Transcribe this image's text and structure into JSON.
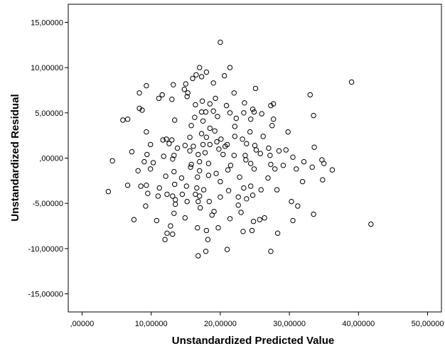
{
  "chart_data": {
    "type": "scatter",
    "title": "",
    "xlabel": "Unstandardized Predicted Value",
    "ylabel": "Unstandardized Residual",
    "xlim": [
      -2,
      52
    ],
    "ylim": [
      -17,
      17
    ],
    "x_ticks": [
      0,
      10,
      20,
      30,
      40,
      50
    ],
    "y_ticks": [
      -15,
      -10,
      -5,
      0,
      5,
      10,
      15
    ],
    "x_tick_labels": [
      ",00000",
      "10,00000",
      "20,00000",
      "30,00000",
      "40,00000",
      "50,00000"
    ],
    "y_tick_labels": [
      "-15,00000",
      "-10,00000",
      "-5,00000",
      ",00000",
      "5,00000",
      "10,00000",
      "15,00000"
    ],
    "grid": false,
    "marker": "open-circle",
    "colors": {
      "plot_background": "#ffffff",
      "marker_stroke": "#000000",
      "frame": "#000000"
    },
    "points": [
      [
        20.0,
        12.8
      ],
      [
        17.0,
        10.0
      ],
      [
        21.4,
        10.0
      ],
      [
        18.0,
        9.5
      ],
      [
        16.5,
        9.2
      ],
      [
        17.3,
        9.0
      ],
      [
        20.6,
        9.1
      ],
      [
        16.0,
        8.8
      ],
      [
        39.0,
        8.4
      ],
      [
        9.3,
        8.0
      ],
      [
        13.2,
        8.1
      ],
      [
        15.0,
        8.2
      ],
      [
        19.0,
        8.3
      ],
      [
        14.8,
        7.6
      ],
      [
        15.3,
        7.2
      ],
      [
        25.1,
        7.7
      ],
      [
        8.3,
        7.2
      ],
      [
        11.6,
        7.0
      ],
      [
        15.2,
        6.8
      ],
      [
        11.1,
        6.6
      ],
      [
        13.0,
        6.5
      ],
      [
        17.4,
        6.3
      ],
      [
        19.3,
        6.6
      ],
      [
        22.0,
        7.2
      ],
      [
        33.0,
        7.0
      ],
      [
        16.4,
        5.9
      ],
      [
        18.5,
        6.0
      ],
      [
        20.9,
        5.8
      ],
      [
        23.5,
        6.1
      ],
      [
        24.7,
        5.4
      ],
      [
        27.3,
        5.8
      ],
      [
        27.7,
        6.0
      ],
      [
        8.3,
        5.5
      ],
      [
        5.9,
        4.2
      ],
      [
        6.6,
        4.3
      ],
      [
        13.4,
        4.2
      ],
      [
        17.3,
        5.1
      ],
      [
        17.9,
        5.1
      ],
      [
        19.0,
        5.2
      ],
      [
        21.4,
        5.0
      ],
      [
        23.4,
        5.0
      ],
      [
        24.9,
        5.1
      ],
      [
        26.0,
        4.9
      ],
      [
        33.5,
        4.7
      ],
      [
        8.7,
        5.3
      ],
      [
        16.3,
        4.5
      ],
      [
        17.5,
        4.1
      ],
      [
        19.6,
        4.6
      ],
      [
        22.3,
        4.4
      ],
      [
        24.4,
        4.3
      ],
      [
        27.7,
        4.3
      ],
      [
        15.8,
        3.6
      ],
      [
        18.5,
        3.3
      ],
      [
        19.2,
        3.0
      ],
      [
        22.1,
        3.5
      ],
      [
        24.3,
        2.9
      ],
      [
        27.5,
        3.6
      ],
      [
        29.8,
        2.9
      ],
      [
        9.3,
        2.9
      ],
      [
        12.2,
        2.1
      ],
      [
        11.7,
        2.0
      ],
      [
        15.6,
        2.3
      ],
      [
        17.3,
        2.7
      ],
      [
        18.0,
        2.3
      ],
      [
        20.1,
        2.1
      ],
      [
        22.1,
        2.4
      ],
      [
        23.2,
        2.1
      ],
      [
        26.2,
        2.4
      ],
      [
        13.0,
        2.0
      ],
      [
        12.6,
        1.6
      ],
      [
        14.9,
        1.4
      ],
      [
        16.1,
        1.3
      ],
      [
        17.5,
        1.5
      ],
      [
        18.5,
        1.5
      ],
      [
        19.5,
        1.8
      ],
      [
        21.0,
        1.5
      ],
      [
        23.8,
        1.6
      ],
      [
        25.0,
        1.4
      ],
      [
        9.9,
        1.5
      ],
      [
        13.8,
        1.1
      ],
      [
        15.6,
        0.8
      ],
      [
        19.8,
        1.0
      ],
      [
        20.7,
        1.3
      ],
      [
        25.2,
        0.9
      ],
      [
        27.0,
        1.1
      ],
      [
        28.5,
        0.8
      ],
      [
        29.5,
        0.9
      ],
      [
        33.6,
        1.2
      ],
      [
        7.2,
        0.7
      ],
      [
        9.4,
        0.4
      ],
      [
        11.8,
        0.2
      ],
      [
        13.3,
        0.3
      ],
      [
        16.8,
        0.4
      ],
      [
        17.8,
        0.6
      ],
      [
        20.4,
        0.4
      ],
      [
        22.0,
        0.3
      ],
      [
        23.6,
        0.3
      ],
      [
        25.8,
        0.5
      ],
      [
        27.2,
        0.3
      ],
      [
        30.5,
        0.1
      ],
      [
        32.1,
        -0.4
      ],
      [
        34.7,
        -0.2
      ],
      [
        4.4,
        -0.3
      ],
      [
        9.0,
        -0.4
      ],
      [
        10.3,
        -0.5
      ],
      [
        13.1,
        -0.1
      ],
      [
        15.8,
        -0.7
      ],
      [
        17.0,
        -0.4
      ],
      [
        18.3,
        -0.6
      ],
      [
        21.5,
        -0.8
      ],
      [
        23.7,
        -0.2
      ],
      [
        24.4,
        -0.6
      ],
      [
        27.3,
        -0.7
      ],
      [
        29.1,
        -0.8
      ],
      [
        31.0,
        -1.2
      ],
      [
        33.3,
        -1.0
      ],
      [
        35.0,
        -0.6
      ],
      [
        36.2,
        -1.3
      ],
      [
        8.1,
        -1.4
      ],
      [
        9.9,
        -1.2
      ],
      [
        13.3,
        -1.5
      ],
      [
        15.7,
        -1.0
      ],
      [
        17.0,
        -1.4
      ],
      [
        19.4,
        -1.7
      ],
      [
        21.1,
        -1.3
      ],
      [
        24.9,
        -1.2
      ],
      [
        27.9,
        -1.2
      ],
      [
        12.1,
        -2.0
      ],
      [
        14.4,
        -2.2
      ],
      [
        16.7,
        -2.1
      ],
      [
        18.3,
        -1.9
      ],
      [
        20.0,
        -2.6
      ],
      [
        22.8,
        -2.1
      ],
      [
        26.9,
        -2.2
      ],
      [
        31.9,
        -2.6
      ],
      [
        34.8,
        -2.4
      ],
      [
        6.6,
        -3.0
      ],
      [
        8.5,
        -3.1
      ],
      [
        9.3,
        -3.0
      ],
      [
        11.2,
        -3.3
      ],
      [
        13.4,
        -2.9
      ],
      [
        15.1,
        -3.1
      ],
      [
        16.6,
        -3.3
      ],
      [
        17.6,
        -3.5
      ],
      [
        21.2,
        -3.6
      ],
      [
        23.4,
        -3.3
      ],
      [
        24.4,
        -3.1
      ],
      [
        25.9,
        -3.5
      ],
      [
        28.2,
        -3.5
      ],
      [
        3.8,
        -3.7
      ],
      [
        9.5,
        -3.9
      ],
      [
        11.0,
        -4.2
      ],
      [
        12.3,
        -4.0
      ],
      [
        13.1,
        -4.2
      ],
      [
        14.5,
        -4.0
      ],
      [
        16.4,
        -4.0
      ],
      [
        17.0,
        -4.2
      ],
      [
        20.0,
        -4.3
      ],
      [
        22.6,
        -4.3
      ],
      [
        23.8,
        -4.5
      ],
      [
        24.7,
        -4.1
      ],
      [
        13.5,
        -4.6
      ],
      [
        15.2,
        -4.8
      ],
      [
        16.8,
        -4.8
      ],
      [
        18.4,
        -4.8
      ],
      [
        22.6,
        -5.2
      ],
      [
        30.3,
        -4.8
      ],
      [
        31.2,
        -5.3
      ],
      [
        9.2,
        -5.3
      ],
      [
        13.5,
        -5.1
      ],
      [
        17.1,
        -5.5
      ],
      [
        19.1,
        -5.9
      ],
      [
        23.0,
        -6.0
      ],
      [
        26.4,
        -6.6
      ],
      [
        33.5,
        -6.2
      ],
      [
        7.5,
        -6.8
      ],
      [
        10.8,
        -6.9
      ],
      [
        13.3,
        -6.1
      ],
      [
        14.9,
        -6.6
      ],
      [
        18.8,
        -6.3
      ],
      [
        21.4,
        -6.7
      ],
      [
        24.8,
        -7.0
      ],
      [
        25.7,
        -6.8
      ],
      [
        30.5,
        -6.9
      ],
      [
        41.8,
        -7.3
      ],
      [
        12.8,
        -7.5
      ],
      [
        16.7,
        -7.7
      ],
      [
        19.7,
        -7.7
      ],
      [
        12.3,
        -8.3
      ],
      [
        13.1,
        -8.4
      ],
      [
        18.0,
        -8.0
      ],
      [
        23.3,
        -8.1
      ],
      [
        24.6,
        -8.0
      ],
      [
        28.3,
        -8.3
      ],
      [
        12.0,
        -9.0
      ],
      [
        18.2,
        -9.0
      ],
      [
        17.9,
        -10.3
      ],
      [
        21.0,
        -10.1
      ],
      [
        27.3,
        -10.3
      ],
      [
        16.8,
        -10.8
      ]
    ]
  }
}
